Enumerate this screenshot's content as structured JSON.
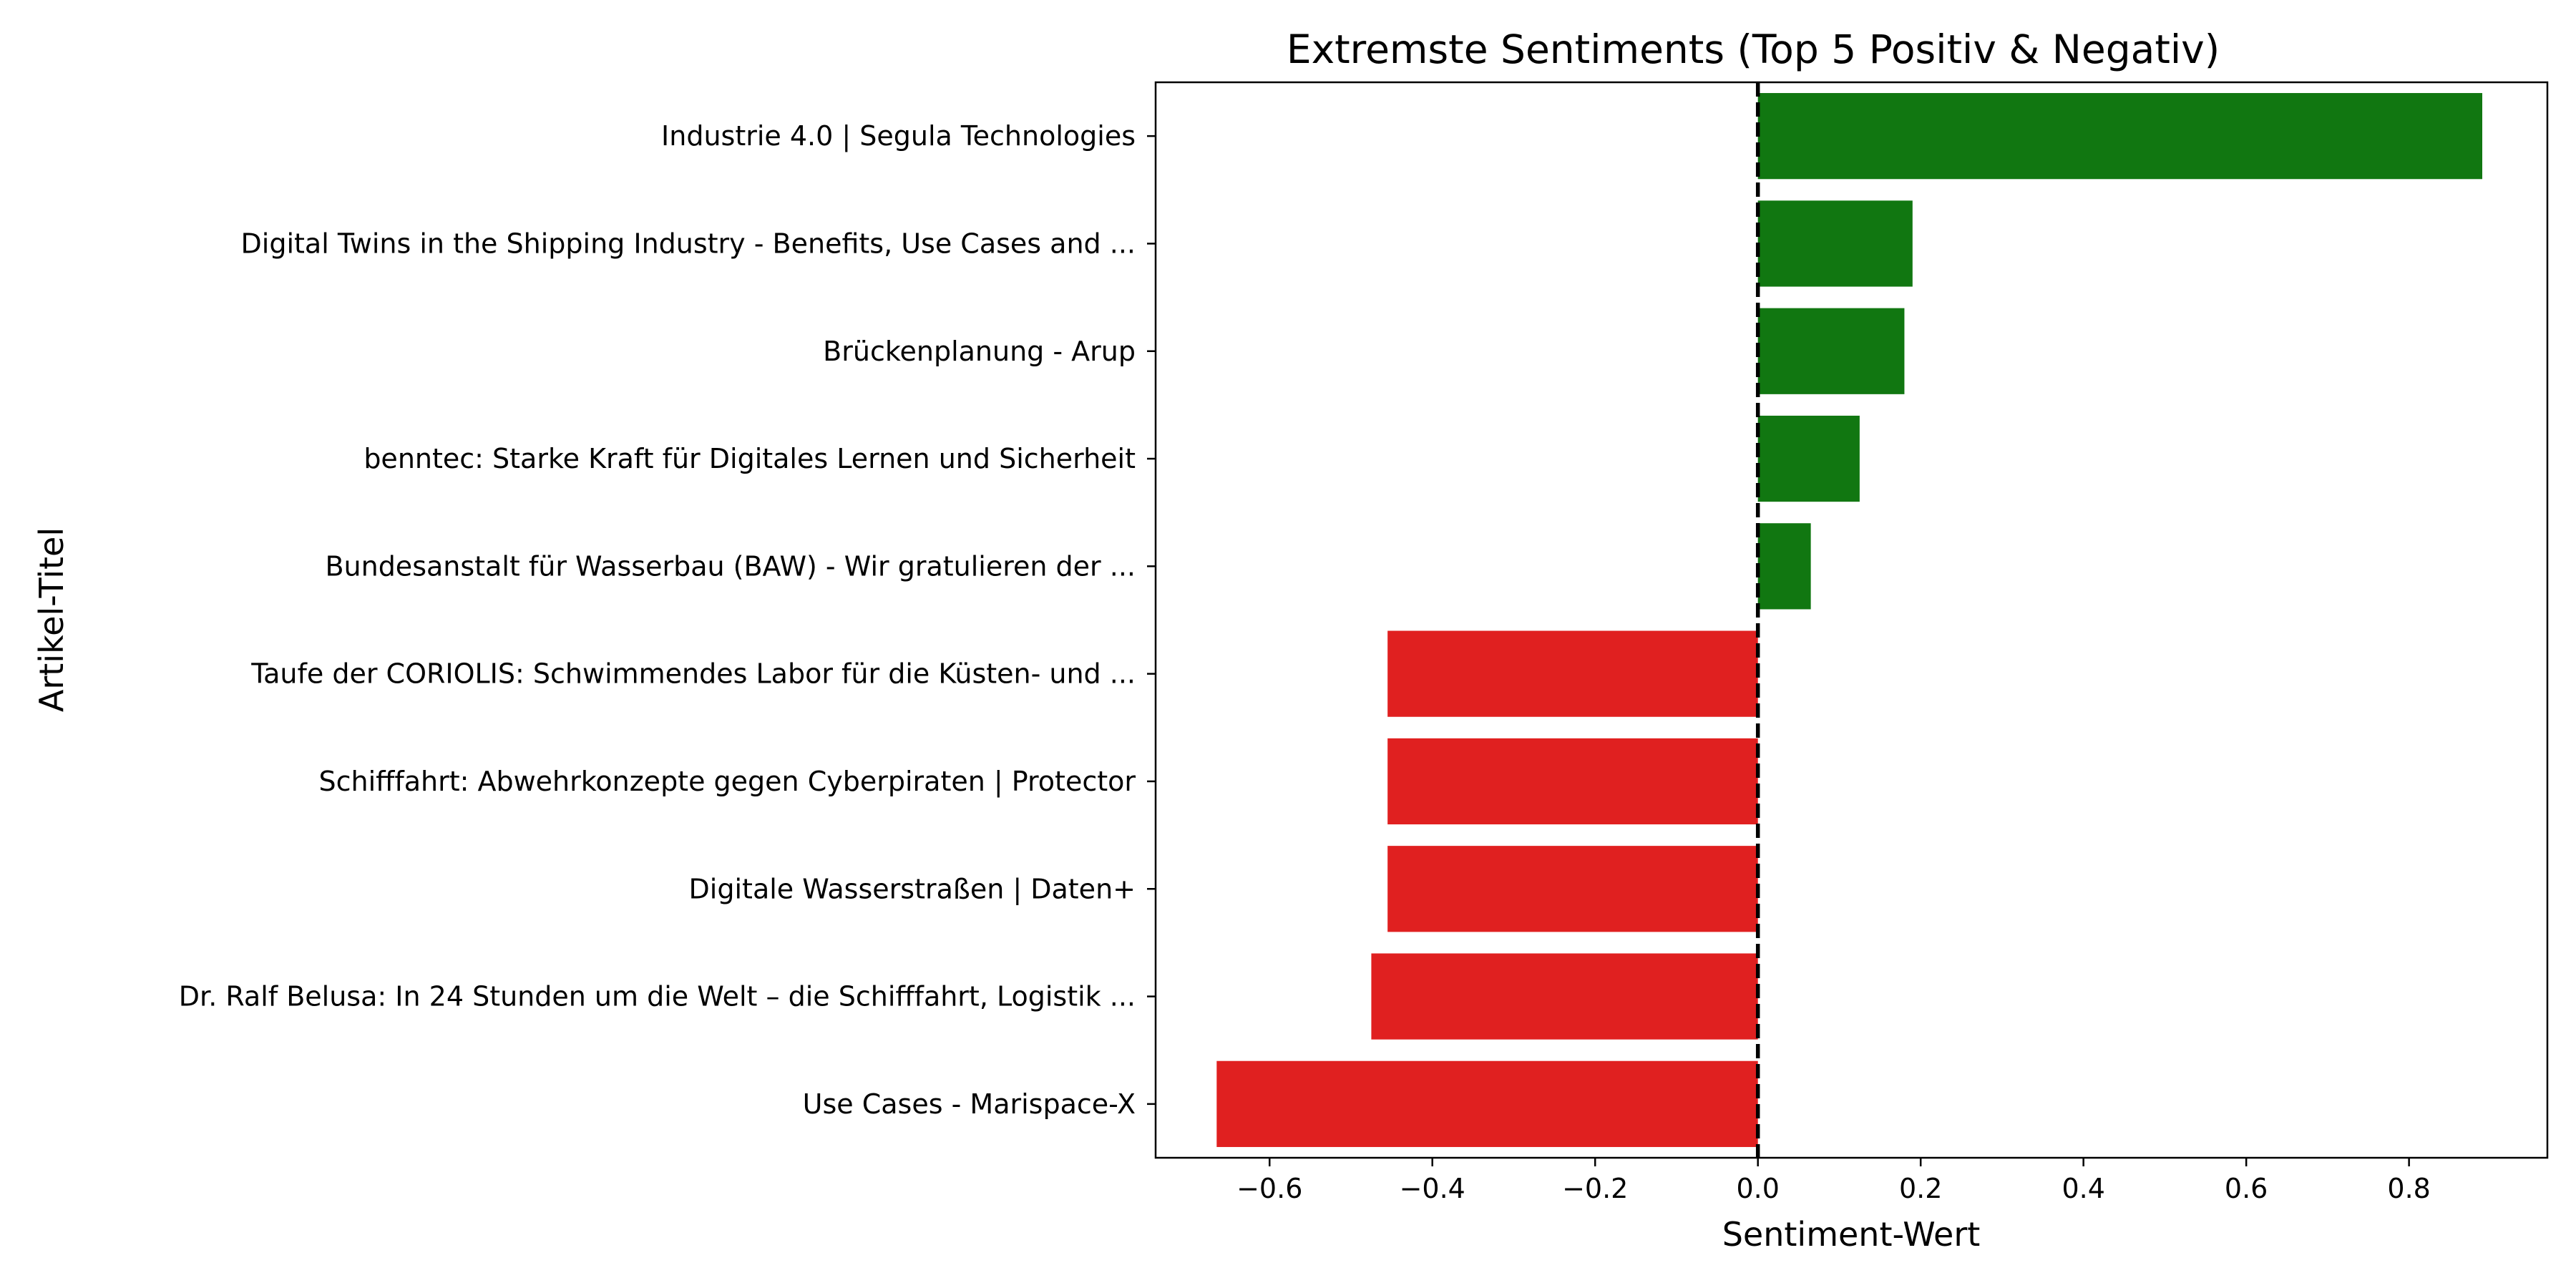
{
  "chart_data": {
    "type": "bar",
    "orientation": "horizontal",
    "title": "Extremste Sentiments (Top 5 Positiv & Negativ)",
    "xlabel": "Sentiment-Wert",
    "ylabel": "Artikel-Titel",
    "xlim": [
      -0.74,
      0.97
    ],
    "xticks": [
      -0.6,
      -0.4,
      -0.2,
      0.0,
      0.2,
      0.4,
      0.6,
      0.8
    ],
    "xtick_labels": [
      "−0.6",
      "−0.4",
      "−0.2",
      "0.0",
      "0.2",
      "0.4",
      "0.6",
      "0.8"
    ],
    "reference_line": {
      "x": 0.0,
      "style": "dashed"
    },
    "grid": false,
    "legend": "none",
    "colors": {
      "positive": "#117711",
      "negative": "#e02020"
    },
    "categories": [
      "Industrie 4.0 | Segula Technologies",
      "Digital Twins in the Shipping Industry - Benefits, Use Cases and ...",
      "Brückenplanung - Arup",
      "benntec: Starke Kraft für Digitales Lernen und Sicherheit",
      "Bundesanstalt für Wasserbau (BAW) - Wir gratulieren der ...",
      "Taufe der CORIOLIS: Schwimmendes Labor für die Küsten- und ...",
      "Schifffahrt: Abwehrkonzepte gegen Cyberpiraten | Protector",
      "Digitale Wasserstraßen | Daten+",
      "Dr. Ralf Belusa: In 24 Stunden um die Welt – die Schifffahrt, Logistik ...",
      "Use Cases - Marispace-X"
    ],
    "values": [
      0.89,
      0.19,
      0.18,
      0.125,
      0.065,
      -0.455,
      -0.455,
      -0.455,
      -0.475,
      -0.665
    ]
  }
}
